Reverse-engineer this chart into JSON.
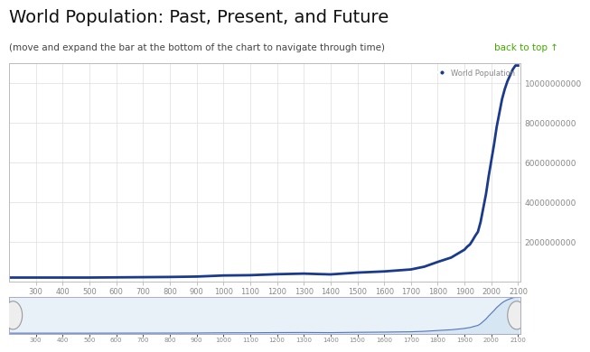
{
  "title": "World Population: Past, Present, and Future",
  "subtitle": "(move and expand the bar at the bottom of the chart to navigate through time)",
  "back_to_top_text": "back to top ↑",
  "legend_label": "World Population",
  "line_color": "#1a3a8c",
  "background_color": "#ffffff",
  "chart_bg_color": "#ffffff",
  "grid_color": "#dddddd",
  "title_color": "#111111",
  "subtitle_color": "#444444",
  "back_to_top_color": "#44aa00",
  "axis_tick_color": "#888888",
  "ylim": [
    0,
    11000000000
  ],
  "xlim": [
    200,
    2110
  ],
  "ytick_values": [
    2000000000,
    4000000000,
    6000000000,
    8000000000,
    10000000000
  ],
  "xtick_values": [
    300,
    400,
    500,
    600,
    700,
    800,
    900,
    1000,
    1100,
    1200,
    1300,
    1400,
    1500,
    1600,
    1700,
    1800,
    1900,
    2000,
    2100
  ],
  "population_data": [
    [
      200,
      190000000
    ],
    [
      300,
      190000000
    ],
    [
      400,
      190000000
    ],
    [
      500,
      190000000
    ],
    [
      600,
      200000000
    ],
    [
      700,
      210000000
    ],
    [
      800,
      220000000
    ],
    [
      900,
      240000000
    ],
    [
      1000,
      295000000
    ],
    [
      1100,
      310000000
    ],
    [
      1200,
      360000000
    ],
    [
      1300,
      390000000
    ],
    [
      1347,
      370000000
    ],
    [
      1400,
      350000000
    ],
    [
      1500,
      440000000
    ],
    [
      1600,
      500000000
    ],
    [
      1700,
      600000000
    ],
    [
      1750,
      740000000
    ],
    [
      1800,
      980000000
    ],
    [
      1850,
      1200000000
    ],
    [
      1900,
      1600000000
    ],
    [
      1910,
      1750000000
    ],
    [
      1920,
      1860000000
    ],
    [
      1930,
      2070000000
    ],
    [
      1940,
      2300000000
    ],
    [
      1950,
      2500000000
    ],
    [
      1960,
      3000000000
    ],
    [
      1970,
      3700000000
    ],
    [
      1980,
      4400000000
    ],
    [
      1990,
      5300000000
    ],
    [
      2000,
      6100000000
    ],
    [
      2010,
      6900000000
    ],
    [
      2020,
      7800000000
    ],
    [
      2030,
      8500000000
    ],
    [
      2040,
      9200000000
    ],
    [
      2050,
      9700000000
    ],
    [
      2060,
      10100000000
    ],
    [
      2070,
      10400000000
    ],
    [
      2080,
      10700000000
    ],
    [
      2090,
      10900000000
    ],
    [
      2100,
      10900000000
    ]
  ],
  "nav_fill_color": "#c8ddf0",
  "nav_line_color": "#5577bb",
  "nav_bg_color": "#e8f0f8"
}
